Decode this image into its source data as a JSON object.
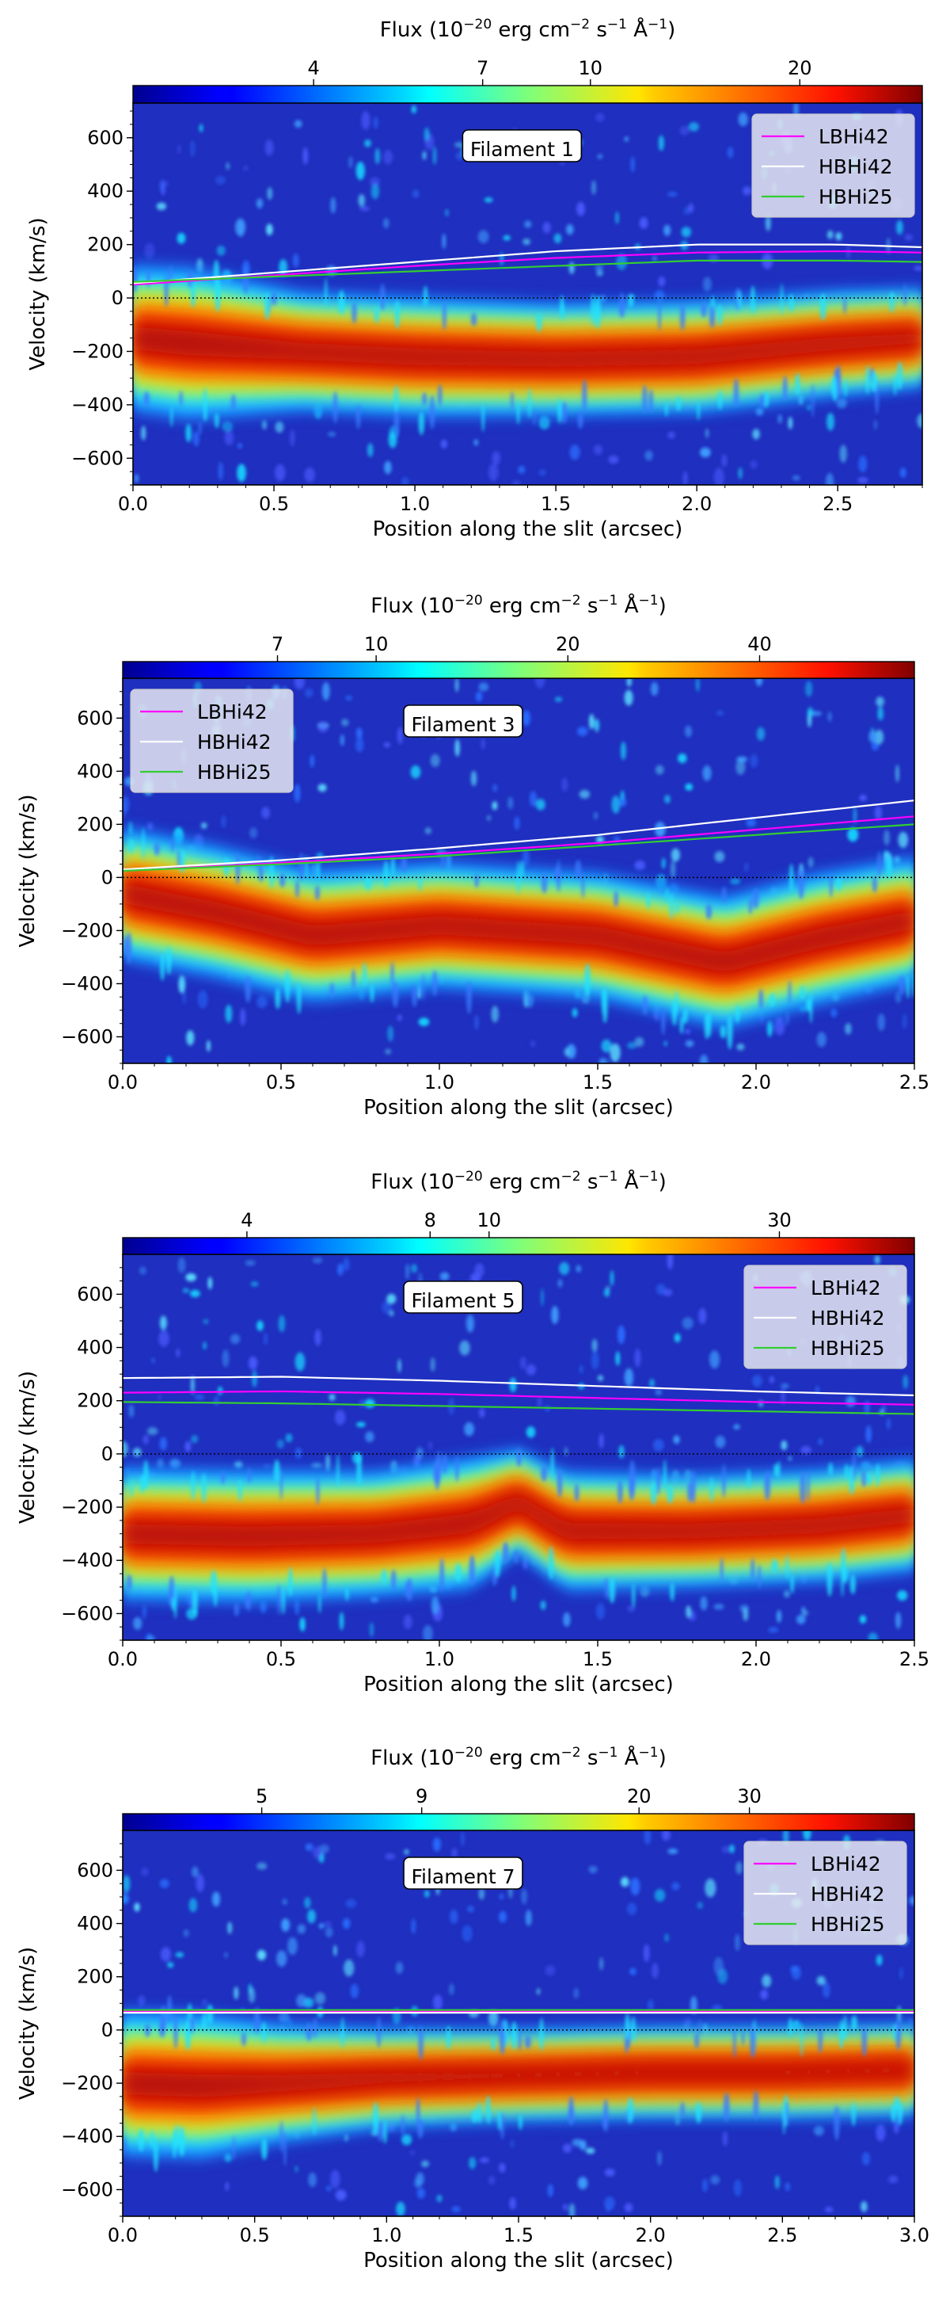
{
  "chart_data": [
    {
      "type": "heatmap",
      "annotation": "Filament 1",
      "xlabel": "Position along the slit (arcsec)",
      "ylabel": "Velocity (km/s)",
      "xlim": [
        0,
        2.8
      ],
      "ylim": [
        -700,
        730
      ],
      "xticks": [
        0.0,
        0.5,
        1.0,
        1.5,
        2.0,
        2.5
      ],
      "xtick_labels": [
        "0.0",
        "0.5",
        "1.0",
        "1.5",
        "2.0",
        "2.5"
      ],
      "yticks": [
        -600,
        -400,
        -200,
        0,
        200,
        400,
        600
      ],
      "ytick_labels": [
        "−600",
        "−400",
        "−200",
        "0",
        "200",
        "400",
        "600"
      ],
      "colorbar": {
        "label_prefix": "Flux (10",
        "label_exp1": "−20",
        "label_mid": " erg cm",
        "label_exp2": "−2",
        "label_mid2": " s",
        "label_exp3": "−1",
        "label_unit": " Å",
        "label_exp4": "−1",
        "label_suffix": ")",
        "vmin": 2.2,
        "vmax": 30,
        "scale": "log",
        "ticks": [
          4,
          7,
          10,
          20
        ],
        "tick_labels": [
          "4",
          "7",
          "10",
          "20"
        ]
      },
      "legend": {
        "placement": "top-right",
        "entries": [
          "LBHi42",
          "HBHi42",
          "HBHi25"
        ]
      },
      "emission_band": {
        "x": [
          0,
          0.2,
          0.6,
          1.0,
          1.5,
          2.0,
          2.5,
          2.8
        ],
        "center": [
          -150,
          -170,
          -200,
          -220,
          -230,
          -220,
          -170,
          -150
        ],
        "halfwidth": [
          220,
          230,
          180,
          180,
          170,
          170,
          160,
          150
        ]
      },
      "series": [
        {
          "name": "LBHi42",
          "color": "#ff00ff",
          "x": [
            0,
            0.5,
            1.0,
            1.5,
            2.0,
            2.5,
            2.8
          ],
          "y": [
            50,
            85,
            120,
            150,
            170,
            175,
            170
          ]
        },
        {
          "name": "HBHi42",
          "color": "#ffffff",
          "x": [
            0,
            0.5,
            1.0,
            1.5,
            2.0,
            2.5,
            2.8
          ],
          "y": [
            55,
            95,
            135,
            175,
            200,
            200,
            190
          ]
        },
        {
          "name": "HBHi25",
          "color": "#32cd32",
          "x": [
            0,
            0.5,
            1.0,
            1.5,
            2.0,
            2.5,
            2.8
          ],
          "y": [
            60,
            80,
            100,
            120,
            140,
            140,
            135
          ]
        }
      ]
    },
    {
      "type": "heatmap",
      "annotation": "Filament 3",
      "xlabel": "Position along the slit (arcsec)",
      "ylabel": "Velocity (km/s)",
      "xlim": [
        0,
        2.5
      ],
      "ylim": [
        -700,
        750
      ],
      "xticks": [
        0.0,
        0.5,
        1.0,
        1.5,
        2.0,
        2.5
      ],
      "xtick_labels": [
        "0.0",
        "0.5",
        "1.0",
        "1.5",
        "2.0",
        "2.5"
      ],
      "yticks": [
        -600,
        -400,
        -200,
        0,
        200,
        400,
        600
      ],
      "ytick_labels": [
        "−600",
        "−400",
        "−200",
        "0",
        "200",
        "400",
        "600"
      ],
      "colorbar": {
        "label_prefix": "Flux (10",
        "label_exp1": "−20",
        "label_mid": " erg cm",
        "label_exp2": "−2",
        "label_mid2": " s",
        "label_exp3": "−1",
        "label_unit": " Å",
        "label_exp4": "−1",
        "label_suffix": ")",
        "vmin": 4,
        "vmax": 70,
        "scale": "log",
        "ticks": [
          7,
          10,
          20,
          40
        ],
        "tick_labels": [
          "7",
          "10",
          "20",
          "40"
        ]
      },
      "legend": {
        "placement": "top-left",
        "entries": [
          "LBHi42",
          "HBHi42",
          "HBHi25"
        ]
      },
      "emission_band": {
        "x": [
          0,
          0.3,
          0.6,
          1.0,
          1.5,
          1.9,
          2.2,
          2.5
        ],
        "center": [
          -60,
          -130,
          -220,
          -180,
          -220,
          -320,
          -230,
          -160
        ],
        "halfwidth": [
          200,
          200,
          200,
          190,
          190,
          200,
          200,
          190
        ]
      },
      "series": [
        {
          "name": "LBHi42",
          "color": "#ff00ff",
          "x": [
            0,
            0.5,
            1.0,
            1.5,
            2.0,
            2.5
          ],
          "y": [
            25,
            55,
            90,
            130,
            180,
            230
          ]
        },
        {
          "name": "HBHi42",
          "color": "#ffffff",
          "x": [
            0,
            0.5,
            1.0,
            1.5,
            2.0,
            2.5
          ],
          "y": [
            30,
            65,
            110,
            160,
            225,
            290
          ]
        },
        {
          "name": "HBHi25",
          "color": "#32cd32",
          "x": [
            0,
            0.5,
            1.0,
            1.5,
            2.0,
            2.5
          ],
          "y": [
            25,
            50,
            80,
            120,
            160,
            200
          ]
        }
      ]
    },
    {
      "type": "heatmap",
      "annotation": "Filament 5",
      "xlabel": "Position along the slit (arcsec)",
      "ylabel": "Velocity (km/s)",
      "xlim": [
        0,
        2.5
      ],
      "ylim": [
        -700,
        750
      ],
      "xticks": [
        0.0,
        0.5,
        1.0,
        1.5,
        2.0,
        2.5
      ],
      "xtick_labels": [
        "0.0",
        "0.5",
        "1.0",
        "1.5",
        "2.0",
        "2.5"
      ],
      "yticks": [
        -600,
        -400,
        -200,
        0,
        200,
        400,
        600
      ],
      "ytick_labels": [
        "−600",
        "−400",
        "−200",
        "0",
        "200",
        "400",
        "600"
      ],
      "colorbar": {
        "label_prefix": "Flux (10",
        "label_exp1": "−20",
        "label_mid": " erg cm",
        "label_exp2": "−2",
        "label_mid2": " s",
        "label_exp3": "−1",
        "label_unit": " Å",
        "label_exp4": "−1",
        "label_suffix": ")",
        "vmin": 2.5,
        "vmax": 50,
        "scale": "log",
        "ticks": [
          4,
          8,
          10,
          30
        ],
        "tick_labels": [
          "4",
          "8",
          "10",
          "30"
        ]
      },
      "legend": {
        "placement": "top-right",
        "entries": [
          "LBHi42",
          "HBHi42",
          "HBHi25"
        ]
      },
      "emission_band": {
        "x": [
          0,
          0.4,
          0.8,
          1.1,
          1.25,
          1.4,
          1.8,
          2.2,
          2.5
        ],
        "center": [
          -300,
          -310,
          -300,
          -260,
          -180,
          -290,
          -290,
          -270,
          -230
        ],
        "halfwidth": [
          200,
          200,
          190,
          200,
          160,
          180,
          170,
          170,
          170
        ]
      },
      "series": [
        {
          "name": "LBHi42",
          "color": "#ff00ff",
          "x": [
            0,
            0.5,
            1.0,
            1.5,
            2.0,
            2.5
          ],
          "y": [
            230,
            235,
            225,
            210,
            195,
            185
          ]
        },
        {
          "name": "HBHi42",
          "color": "#ffffff",
          "x": [
            0,
            0.5,
            1.0,
            1.5,
            2.0,
            2.5
          ],
          "y": [
            285,
            290,
            275,
            255,
            235,
            220
          ]
        },
        {
          "name": "HBHi25",
          "color": "#32cd32",
          "x": [
            0,
            0.5,
            1.0,
            1.5,
            2.0,
            2.5
          ],
          "y": [
            195,
            190,
            180,
            170,
            160,
            150
          ]
        }
      ]
    },
    {
      "type": "heatmap",
      "annotation": "Filament 7",
      "xlabel": "Position along the slit (arcsec)",
      "ylabel": "Velocity (km/s)",
      "xlim": [
        0,
        3.0
      ],
      "ylim": [
        -700,
        750
      ],
      "xticks": [
        0.0,
        0.5,
        1.0,
        1.5,
        2.0,
        2.5,
        3.0
      ],
      "xtick_labels": [
        "0.0",
        "0.5",
        "1.0",
        "1.5",
        "2.0",
        "2.5",
        "3.0"
      ],
      "yticks": [
        -600,
        -400,
        -200,
        0,
        200,
        400,
        600
      ],
      "ytick_labels": [
        "−600",
        "−400",
        "−200",
        "0",
        "200",
        "400",
        "600"
      ],
      "colorbar": {
        "label_prefix": "Flux (10",
        "label_exp1": "−20",
        "label_mid": " erg cm",
        "label_exp2": "−2",
        "label_mid2": " s",
        "label_exp3": "−1",
        "label_unit": " Å",
        "label_exp4": "−1",
        "label_suffix": ")",
        "vmin": 3,
        "vmax": 55,
        "scale": "log",
        "ticks": [
          5,
          9,
          20,
          30
        ],
        "tick_labels": [
          "5",
          "9",
          "20",
          "30"
        ]
      },
      "legend": {
        "placement": "top-right",
        "entries": [
          "LBHi42",
          "HBHi42",
          "HBHi25"
        ]
      },
      "emission_band": {
        "x": [
          0,
          0.3,
          0.6,
          1.0,
          1.5,
          2.0,
          2.5,
          3.0
        ],
        "center": [
          -200,
          -210,
          -200,
          -180,
          -170,
          -160,
          -160,
          -150
        ],
        "halfwidth": [
          220,
          220,
          180,
          150,
          140,
          140,
          140,
          140
        ]
      },
      "series": [
        {
          "name": "LBHi42",
          "color": "#ff00ff",
          "x": [
            0,
            1.0,
            2.0,
            3.0
          ],
          "y": [
            70,
            70,
            70,
            70
          ]
        },
        {
          "name": "HBHi42",
          "color": "#ffffff",
          "x": [
            0,
            1.0,
            2.0,
            3.0
          ],
          "y": [
            65,
            65,
            65,
            65
          ]
        },
        {
          "name": "HBHi25",
          "color": "#32cd32",
          "x": [
            0,
            1.0,
            2.0,
            3.0
          ],
          "y": [
            75,
            75,
            75,
            75
          ]
        }
      ]
    }
  ]
}
